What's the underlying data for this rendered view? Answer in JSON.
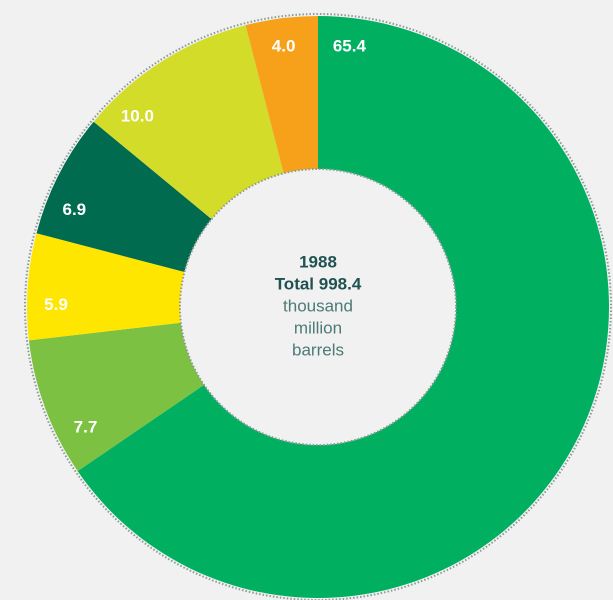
{
  "chart_data": {
    "type": "donut",
    "center_text": [
      "1988",
      "Total 998.4",
      "thousand",
      "million",
      "barrels"
    ],
    "categories": [
      null,
      null,
      null,
      null,
      null,
      null
    ],
    "values": [
      65.4,
      7.7,
      5.9,
      6.9,
      10.0,
      4.0
    ],
    "value_labels": [
      "65.4",
      "7.7",
      "5.9",
      "6.9",
      "10.0",
      "4.0"
    ],
    "colors": [
      "#00b060",
      "#7dc142",
      "#ffe600",
      "#006b4f",
      "#d4dc2a",
      "#f7a11a"
    ]
  }
}
